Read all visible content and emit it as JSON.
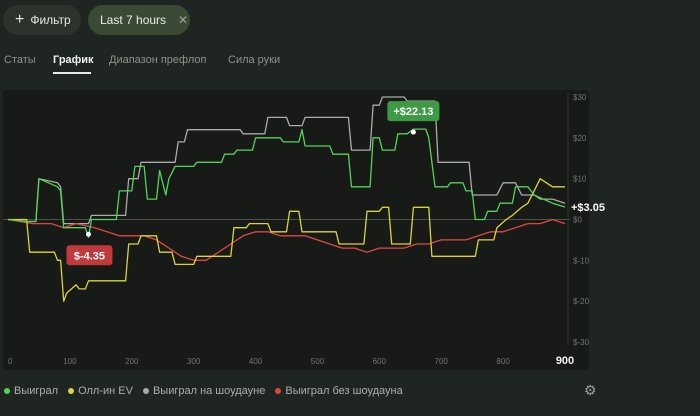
{
  "filter_button": {
    "icon": "plus-icon",
    "label": "Фильтр"
  },
  "time_chip": {
    "label": "Last 7 hours",
    "close_icon": "close-icon"
  },
  "tabs": [
    {
      "label": "Статы",
      "active": false
    },
    {
      "label": "График",
      "active": true
    },
    {
      "label": "Диапазон префлоп",
      "active": false
    },
    {
      "label": "Сила руки",
      "active": false
    }
  ],
  "chart_data": {
    "type": "line",
    "x_ticks": [
      "0",
      "100",
      "200",
      "300",
      "400",
      "500",
      "600",
      "700",
      "800",
      "900"
    ],
    "y_ticks": [
      "$30",
      "$20",
      "$10",
      "$0",
      "$-10",
      "$-20",
      "$-30"
    ],
    "xlim": [
      0,
      900
    ],
    "ylim": [
      -30,
      30
    ],
    "grid": false,
    "legend_position": "bottom-left",
    "annotations": [
      {
        "label": "+$22.13",
        "x": 655,
        "y": 22.13,
        "color": "#3e9a44"
      },
      {
        "label": "$-4.35",
        "x": 130,
        "y": -4.35,
        "color": "#c0393b"
      },
      {
        "label": "+$3.05",
        "x": 900,
        "y": 3.05,
        "color": "#ffffff"
      }
    ],
    "series": [
      {
        "name": "Выиграл",
        "color": "#54d35a",
        "points": [
          [
            0,
            0
          ],
          [
            30,
            -0.5
          ],
          [
            45,
            -0.5
          ],
          [
            50,
            10
          ],
          [
            80,
            8
          ],
          [
            85,
            7
          ],
          [
            90,
            -2
          ],
          [
            125,
            -2
          ],
          [
            130,
            -4.35
          ],
          [
            135,
            0
          ],
          [
            175,
            0
          ],
          [
            180,
            7
          ],
          [
            200,
            7
          ],
          [
            205,
            13
          ],
          [
            220,
            13
          ],
          [
            225,
            5
          ],
          [
            240,
            5
          ],
          [
            245,
            12
          ],
          [
            255,
            6
          ],
          [
            260,
            10
          ],
          [
            270,
            13
          ],
          [
            300,
            13
          ],
          [
            305,
            14
          ],
          [
            345,
            14
          ],
          [
            350,
            16
          ],
          [
            365,
            16
          ],
          [
            370,
            17
          ],
          [
            395,
            17
          ],
          [
            400,
            20
          ],
          [
            440,
            20
          ],
          [
            445,
            19
          ],
          [
            470,
            19
          ],
          [
            475,
            22
          ],
          [
            480,
            18
          ],
          [
            520,
            18
          ],
          [
            525,
            16
          ],
          [
            550,
            16
          ],
          [
            555,
            8
          ],
          [
            585,
            8
          ],
          [
            590,
            20
          ],
          [
            600,
            20
          ],
          [
            605,
            17
          ],
          [
            625,
            17
          ],
          [
            630,
            21
          ],
          [
            645,
            21
          ],
          [
            655,
            22.13
          ],
          [
            675,
            22.13
          ],
          [
            680,
            20
          ],
          [
            690,
            8
          ],
          [
            710,
            8
          ],
          [
            715,
            9
          ],
          [
            735,
            9
          ],
          [
            740,
            7
          ],
          [
            750,
            7
          ],
          [
            755,
            0
          ],
          [
            770,
            0
          ],
          [
            775,
            2
          ],
          [
            790,
            2
          ],
          [
            795,
            4
          ],
          [
            815,
            4
          ],
          [
            820,
            8
          ],
          [
            840,
            8
          ],
          [
            850,
            6
          ],
          [
            880,
            4
          ],
          [
            900,
            3.05
          ]
        ]
      },
      {
        "name": "Олл-ин EV",
        "color": "#d9d43c",
        "points": [
          [
            0,
            0
          ],
          [
            30,
            0
          ],
          [
            35,
            -8
          ],
          [
            75,
            -8
          ],
          [
            80,
            -10
          ],
          [
            85,
            -10
          ],
          [
            90,
            -20
          ],
          [
            95,
            -18
          ],
          [
            110,
            -16
          ],
          [
            115,
            -17
          ],
          [
            125,
            -17
          ],
          [
            130,
            -15
          ],
          [
            190,
            -15
          ],
          [
            195,
            -6
          ],
          [
            210,
            -6
          ],
          [
            215,
            -4
          ],
          [
            240,
            -4
          ],
          [
            245,
            -8
          ],
          [
            265,
            -8
          ],
          [
            270,
            -11
          ],
          [
            300,
            -11
          ],
          [
            305,
            -9
          ],
          [
            360,
            -9
          ],
          [
            365,
            -2
          ],
          [
            385,
            -2
          ],
          [
            390,
            -1
          ],
          [
            420,
            -1
          ],
          [
            425,
            -3
          ],
          [
            450,
            -3
          ],
          [
            455,
            2
          ],
          [
            470,
            2
          ],
          [
            475,
            -3
          ],
          [
            530,
            -3
          ],
          [
            535,
            -6
          ],
          [
            575,
            -6
          ],
          [
            580,
            2
          ],
          [
            600,
            2
          ],
          [
            605,
            3
          ],
          [
            615,
            3
          ],
          [
            620,
            -6
          ],
          [
            650,
            -6
          ],
          [
            655,
            3
          ],
          [
            680,
            3
          ],
          [
            685,
            -9
          ],
          [
            755,
            -9
          ],
          [
            760,
            -5
          ],
          [
            785,
            -5
          ],
          [
            790,
            -2
          ],
          [
            805,
            0
          ],
          [
            815,
            1
          ],
          [
            830,
            3
          ],
          [
            840,
            4
          ],
          [
            850,
            7
          ],
          [
            860,
            10
          ],
          [
            870,
            9
          ],
          [
            880,
            8
          ],
          [
            890,
            8
          ],
          [
            900,
            8
          ]
        ]
      },
      {
        "name": "Выиграл на шоудауне",
        "color": "#a9aca9",
        "points": [
          [
            0,
            0
          ],
          [
            30,
            -0.5
          ],
          [
            45,
            -0.5
          ],
          [
            50,
            10
          ],
          [
            80,
            9
          ],
          [
            85,
            8
          ],
          [
            90,
            -1
          ],
          [
            125,
            -1
          ],
          [
            130,
            -1
          ],
          [
            135,
            1
          ],
          [
            190,
            1
          ],
          [
            195,
            10
          ],
          [
            210,
            10
          ],
          [
            215,
            14
          ],
          [
            270,
            14
          ],
          [
            275,
            19
          ],
          [
            285,
            19
          ],
          [
            290,
            22
          ],
          [
            375,
            22
          ],
          [
            380,
            21
          ],
          [
            415,
            21
          ],
          [
            420,
            25
          ],
          [
            450,
            25
          ],
          [
            455,
            23
          ],
          [
            475,
            23
          ],
          [
            480,
            25
          ],
          [
            550,
            25
          ],
          [
            555,
            17
          ],
          [
            585,
            17
          ],
          [
            590,
            28
          ],
          [
            600,
            28
          ],
          [
            605,
            30
          ],
          [
            640,
            30
          ],
          [
            645,
            29
          ],
          [
            690,
            29
          ],
          [
            695,
            14
          ],
          [
            715,
            14
          ],
          [
            720,
            14
          ],
          [
            745,
            14
          ],
          [
            750,
            6
          ],
          [
            790,
            6
          ],
          [
            800,
            9
          ],
          [
            820,
            9
          ],
          [
            830,
            6
          ],
          [
            850,
            6
          ],
          [
            860,
            5
          ],
          [
            880,
            5
          ],
          [
            900,
            4
          ]
        ]
      },
      {
        "name": "Выиграл без шоудауна",
        "color": "#e04744",
        "points": [
          [
            0,
            0
          ],
          [
            40,
            -1
          ],
          [
            70,
            -1
          ],
          [
            90,
            -2
          ],
          [
            110,
            -1
          ],
          [
            140,
            -2
          ],
          [
            160,
            -3
          ],
          [
            180,
            -4
          ],
          [
            200,
            -4
          ],
          [
            220,
            -4
          ],
          [
            240,
            -5
          ],
          [
            260,
            -7
          ],
          [
            280,
            -9
          ],
          [
            300,
            -10
          ],
          [
            320,
            -10
          ],
          [
            330,
            -9
          ],
          [
            360,
            -6
          ],
          [
            380,
            -4
          ],
          [
            400,
            -3
          ],
          [
            420,
            -3
          ],
          [
            440,
            -4
          ],
          [
            460,
            -4
          ],
          [
            480,
            -4
          ],
          [
            500,
            -5
          ],
          [
            520,
            -6
          ],
          [
            540,
            -7
          ],
          [
            560,
            -7
          ],
          [
            580,
            -8
          ],
          [
            600,
            -7
          ],
          [
            620,
            -7
          ],
          [
            640,
            -7
          ],
          [
            660,
            -6
          ],
          [
            680,
            -6
          ],
          [
            700,
            -5
          ],
          [
            720,
            -5
          ],
          [
            740,
            -5
          ],
          [
            760,
            -4
          ],
          [
            780,
            -3
          ],
          [
            800,
            -3
          ],
          [
            820,
            -2
          ],
          [
            840,
            -1
          ],
          [
            860,
            -1
          ],
          [
            880,
            0
          ],
          [
            900,
            -1
          ]
        ]
      }
    ]
  },
  "settings": {
    "icon": "gear-icon"
  }
}
